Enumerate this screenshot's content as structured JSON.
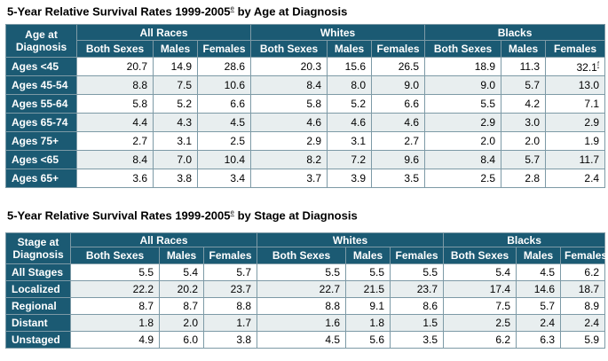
{
  "age_table": {
    "title": "5-Year Relative Survival Rates 1999-2005",
    "title_sup": "e",
    "title_suffix": " by Age at Diagnosis",
    "corner_label_1": "Age at",
    "corner_label_2": "Diagnosis",
    "groups": [
      "All Races",
      "Whites",
      "Blacks"
    ],
    "subheaders": [
      "Both Sexes",
      "Males",
      "Females"
    ],
    "rows": [
      {
        "label": "Ages <45",
        "values": [
          "20.7",
          "14.9",
          "28.6",
          "20.3",
          "15.6",
          "26.5",
          "18.9",
          "11.3",
          "32.1"
        ],
        "last_sup": "f"
      },
      {
        "label": "Ages 45-54",
        "values": [
          "8.8",
          "7.5",
          "10.6",
          "8.4",
          "8.0",
          "9.0",
          "9.0",
          "5.7",
          "13.0"
        ],
        "last_sup": ""
      },
      {
        "label": "Ages 55-64",
        "values": [
          "5.8",
          "5.2",
          "6.6",
          "5.8",
          "5.2",
          "6.6",
          "5.5",
          "4.2",
          "7.1"
        ],
        "last_sup": ""
      },
      {
        "label": "Ages 65-74",
        "values": [
          "4.4",
          "4.3",
          "4.5",
          "4.6",
          "4.6",
          "4.6",
          "2.9",
          "3.0",
          "2.9"
        ],
        "last_sup": ""
      },
      {
        "label": "Ages 75+",
        "values": [
          "2.7",
          "3.1",
          "2.5",
          "2.9",
          "3.1",
          "2.7",
          "2.0",
          "2.0",
          "1.9"
        ],
        "last_sup": ""
      },
      {
        "label": "Ages <65",
        "values": [
          "8.4",
          "7.0",
          "10.4",
          "8.2",
          "7.2",
          "9.6",
          "8.4",
          "5.7",
          "11.7"
        ],
        "last_sup": ""
      },
      {
        "label": "Ages 65+",
        "values": [
          "3.6",
          "3.8",
          "3.4",
          "3.7",
          "3.9",
          "3.5",
          "2.5",
          "2.8",
          "2.4"
        ],
        "last_sup": ""
      }
    ]
  },
  "stage_table": {
    "title": "5-Year Relative Survival Rates 1999-2005",
    "title_sup": "e",
    "title_suffix": " by Stage at Diagnosis",
    "corner_label_1": "Stage at",
    "corner_label_2": "Diagnosis",
    "groups": [
      "All Races",
      "Whites",
      "Blacks"
    ],
    "subheaders": [
      "Both Sexes",
      "Males",
      "Females"
    ],
    "rows": [
      {
        "label": "All Stages",
        "values": [
          "5.5",
          "5.4",
          "5.7",
          "5.5",
          "5.5",
          "5.5",
          "5.4",
          "4.5",
          "6.2"
        ]
      },
      {
        "label": "Localized",
        "values": [
          "22.2",
          "20.2",
          "23.7",
          "22.7",
          "21.5",
          "23.7",
          "17.4",
          "14.6",
          "18.7"
        ]
      },
      {
        "label": "Regional",
        "values": [
          "8.7",
          "8.7",
          "8.8",
          "8.8",
          "9.1",
          "8.6",
          "7.5",
          "5.7",
          "8.9"
        ]
      },
      {
        "label": "Distant",
        "values": [
          "1.8",
          "2.0",
          "1.7",
          "1.6",
          "1.8",
          "1.5",
          "2.5",
          "2.4",
          "2.4"
        ]
      },
      {
        "label": "Unstaged",
        "values": [
          "4.9",
          "6.0",
          "3.8",
          "4.5",
          "5.6",
          "3.5",
          "6.2",
          "6.3",
          "5.9"
        ]
      }
    ]
  },
  "colors": {
    "header_bg": "#1b5a73",
    "alt_row_bg": "#e8eeef",
    "border": "#7d9aa6"
  }
}
